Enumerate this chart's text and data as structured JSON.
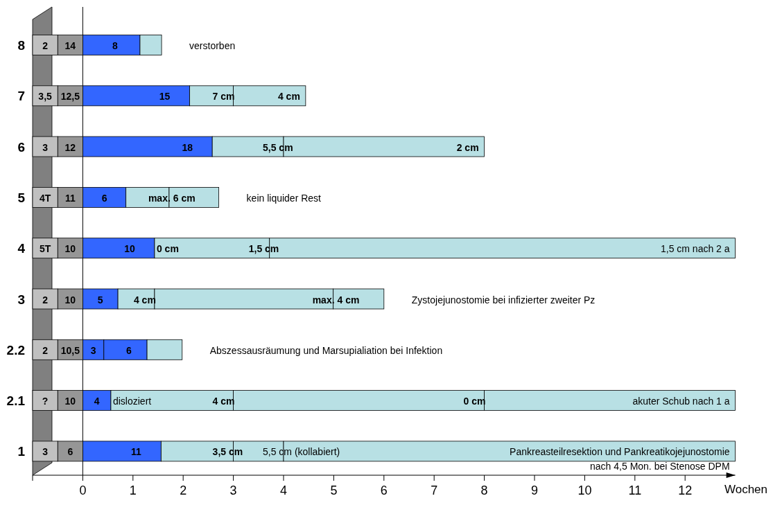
{
  "chart_data": {
    "type": "bar",
    "orientation": "horizontal",
    "stacked": true,
    "categories": [
      "8",
      "7",
      "6",
      "5",
      "4",
      "3",
      "2.2",
      "2.1",
      "1"
    ],
    "xlabel": "Wochen",
    "xlim": [
      -1,
      13
    ],
    "xticks": [
      {
        "value": -1,
        "label": null
      },
      0,
      1,
      2,
      3,
      4,
      5,
      6,
      7,
      8,
      9,
      10,
      11,
      12
    ],
    "series": [
      {
        "color": "#969696",
        "values": [
          -0.5,
          -0.5,
          -0.5,
          -0.5,
          -0.5,
          -0.5,
          -0.5,
          -0.5,
          -0.5
        ]
      },
      {
        "color": "#c0c0c0",
        "values": [
          -0.5,
          -0.5,
          -0.5,
          -0.5,
          -0.5,
          -0.5,
          -0.5,
          -0.5,
          -0.5
        ]
      },
      {
        "color": "#3366ff",
        "values": [
          1.14,
          2.13,
          2.58,
          0.86,
          1.43,
          0.7,
          0.42,
          0.56,
          1.56
        ]
      },
      {
        "colors": [
          "#b8e0e4",
          "#b8e0e4",
          "#b8e0e4",
          "#b8e0e4",
          "#b8e0e4",
          "#b8e0e4",
          "#3366ff",
          "#b8e0e4",
          "#b8e0e4"
        ],
        "values": [
          0.43,
          0.87,
          1.42,
          0.86,
          2.29,
          0.73,
          0.86,
          2.44,
          1.44
        ]
      },
      {
        "color": "#b8e0e4",
        "values": [
          null,
          1.44,
          4.0,
          0.99,
          9.28,
          3.56,
          0.7,
          5.0,
          1.0
        ]
      },
      {
        "color": "#b8e0e4",
        "values": [
          null,
          null,
          null,
          null,
          null,
          1.01,
          null,
          5.0,
          9.0
        ]
      }
    ],
    "annotations": [
      {
        "text": "14",
        "x": -0.5,
        "y": "8"
      },
      {
        "text": "2",
        "x": -1,
        "y": "8"
      },
      {
        "text": "8",
        "x": 1.14,
        "y": "8"
      },
      {
        "text": "verstorben",
        "x": 1.57,
        "y": "8"
      },
      {
        "text": "12,5",
        "x": -0.5,
        "y": "7"
      },
      {
        "text": "3,5",
        "x": -1,
        "y": "7"
      },
      {
        "text": "15",
        "x": 2.13,
        "y": "7"
      },
      {
        "text": "7 cm",
        "x": 3.0,
        "y": "7"
      },
      {
        "text": "4 cm",
        "x": 4.44,
        "y": "7"
      },
      {
        "text": "12",
        "x": -0.5,
        "y": "6"
      },
      {
        "text": "3",
        "x": -1,
        "y": "6"
      },
      {
        "text": "18",
        "x": 2.58,
        "y": "6"
      },
      {
        "text": "5,5 cm",
        "x": 4.0,
        "y": "6"
      },
      {
        "text": "2 cm",
        "x": 8.0,
        "y": "6"
      },
      {
        "text": "11",
        "x": -0.5,
        "y": "5"
      },
      {
        "text": "4T",
        "x": -1,
        "y": "5"
      },
      {
        "text": "6",
        "x": 0.86,
        "y": "5"
      },
      {
        "text": "max. 6 cm",
        "x": 1.72,
        "y": "5"
      },
      {
        "text": "kein liquider Rest",
        "x": 2.71,
        "y": "5"
      },
      {
        "text": "10",
        "x": -0.5,
        "y": "4"
      },
      {
        "text": "5T",
        "x": -1,
        "y": "4"
      },
      {
        "text": "10",
        "x": 1.43,
        "y": "4"
      },
      {
        "text": "0 cm",
        "x": 1.43,
        "y": "4"
      },
      {
        "text": "1,5 cm",
        "x": 3.72,
        "y": "4"
      },
      {
        "text": "1,5 cm nach 2 a",
        "x": 13,
        "y": "4"
      },
      {
        "text": "10",
        "x": -0.5,
        "y": "3"
      },
      {
        "text": "2",
        "x": -1,
        "y": "3"
      },
      {
        "text": "5",
        "x": 0.7,
        "y": "3"
      },
      {
        "text": "4 cm",
        "x": 1.43,
        "y": "3"
      },
      {
        "text": "max. 4 cm",
        "x": 4.99,
        "y": "3"
      },
      {
        "text": "Zystojejunostomie bei infizierter zweiter Pz",
        "x": 6.0,
        "y": "3"
      },
      {
        "text": "10,5",
        "x": -0.5,
        "y": "2.2"
      },
      {
        "text": "2",
        "x": -1,
        "y": "2.2"
      },
      {
        "text": "3",
        "x": 0.42,
        "y": "2.2"
      },
      {
        "text": "6",
        "x": 1.28,
        "y": "2.2"
      },
      {
        "text": "Abszessausräumung und Marsupialiation bei Infektion",
        "x": 1.98,
        "y": "2.2"
      },
      {
        "text": "10",
        "x": -0.5,
        "y": "2.1"
      },
      {
        "text": "?",
        "x": -1,
        "y": "2.1"
      },
      {
        "text": "4",
        "x": 0.56,
        "y": "2.1"
      },
      {
        "text": "disloziert",
        "x": 0.56,
        "y": "2.1"
      },
      {
        "text": "4 cm",
        "x": 3.0,
        "y": "2.1"
      },
      {
        "text": "0 cm",
        "x": 8.0,
        "y": "2.1"
      },
      {
        "text": "akuter Schub nach 1 a",
        "x": 13,
        "y": "2.1"
      },
      {
        "text": "6",
        "x": -0.5,
        "y": "1"
      },
      {
        "text": "3",
        "x": -1,
        "y": "1"
      },
      {
        "text": "11",
        "x": 1.56,
        "y": "1"
      },
      {
        "text": "3,5 cm",
        "x": 3.0,
        "y": "1"
      },
      {
        "text": "5,5 cm (kollabiert)",
        "x": 4.0,
        "y": "1"
      },
      {
        "text": "Pankreasteilresektion und Pankreatikojejunostomie\nnach 4,5 Mon. bei Stenose DPM",
        "x": 13,
        "y": "1"
      }
    ]
  }
}
